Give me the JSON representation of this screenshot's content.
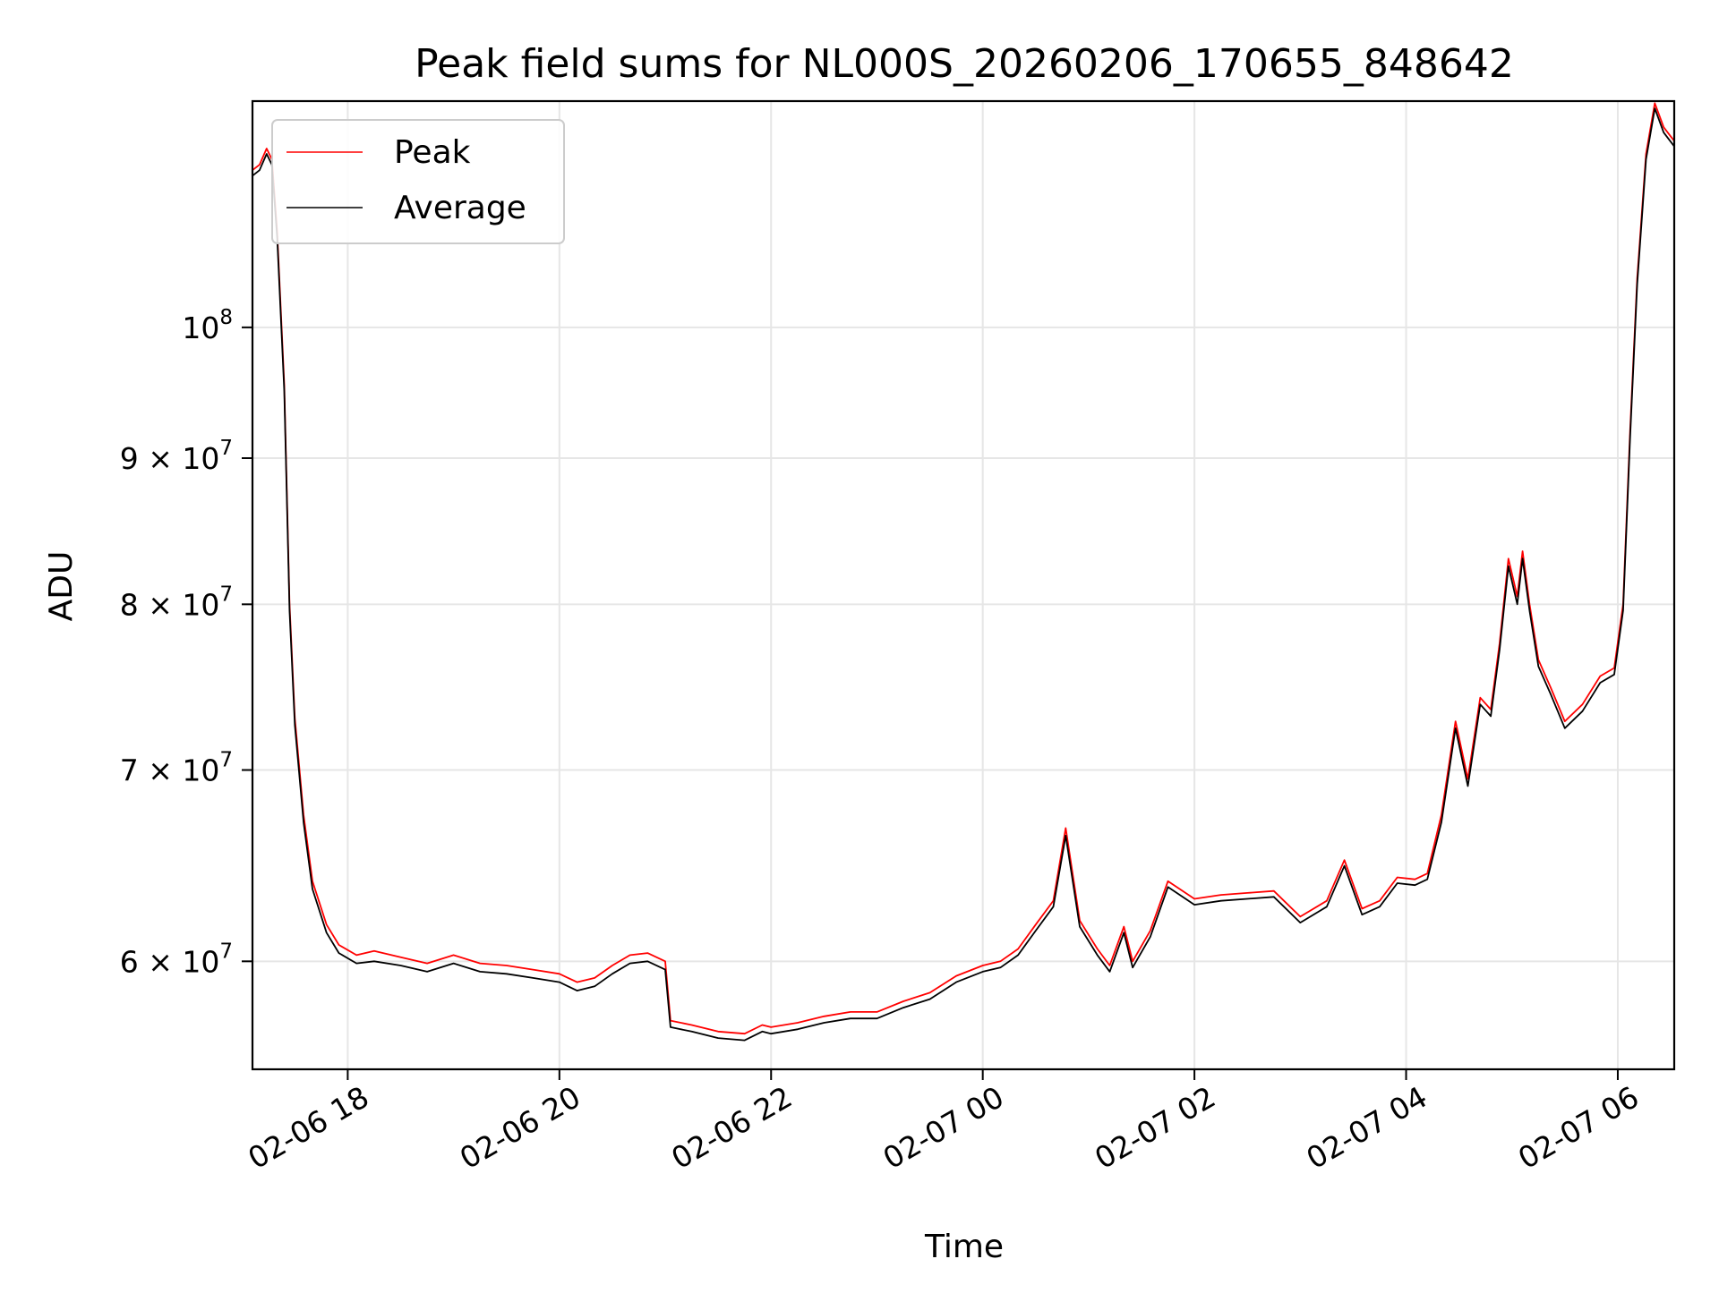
{
  "chart_data": {
    "type": "line",
    "title": "Peak field sums for NL000S_20260206_170655_848642",
    "xlabel": "Time",
    "ylabel": "ADU",
    "y_scale": "log",
    "grid": true,
    "legend_position": "top-left",
    "x_range": [
      "2026-02-06 17:06",
      "2026-02-07 06:32"
    ],
    "ylim": [
      55000000,
      120000000
    ],
    "x_ticks": [
      {
        "t": "2026-02-06 18:00",
        "label": "02-06 18"
      },
      {
        "t": "2026-02-06 20:00",
        "label": "02-06 20"
      },
      {
        "t": "2026-02-06 22:00",
        "label": "02-06 22"
      },
      {
        "t": "2026-02-07 00:00",
        "label": "02-07 00"
      },
      {
        "t": "2026-02-07 02:00",
        "label": "02-07 02"
      },
      {
        "t": "2026-02-07 04:00",
        "label": "02-07 04"
      },
      {
        "t": "2026-02-07 06:00",
        "label": "02-07 06"
      }
    ],
    "y_ticks": [
      {
        "value": 60000000,
        "base": "6",
        "exp": "7",
        "label": "6 × 10^7"
      },
      {
        "value": 70000000,
        "base": "7",
        "exp": "7",
        "label": "7 × 10^7"
      },
      {
        "value": 80000000,
        "base": "8",
        "exp": "7",
        "label": "8 × 10^7"
      },
      {
        "value": 90000000,
        "base": "9",
        "exp": "7",
        "label": "9 × 10^7"
      },
      {
        "value": 100000000,
        "base": "10",
        "exp": "8",
        "label": "10^8"
      }
    ],
    "series": [
      {
        "name": "Peak",
        "color": "#ff0000",
        "points": [
          [
            "2026-02-06 17:06",
            113500000
          ],
          [
            "2026-02-06 17:10",
            114000000
          ],
          [
            "2026-02-06 17:14",
            115500000
          ],
          [
            "2026-02-06 17:17",
            114500000
          ],
          [
            "2026-02-06 17:20",
            108000000
          ],
          [
            "2026-02-06 17:24",
            95500000
          ],
          [
            "2026-02-06 17:27",
            80000000
          ],
          [
            "2026-02-06 17:30",
            73000000
          ],
          [
            "2026-02-06 17:35",
            67500000
          ],
          [
            "2026-02-06 17:40",
            64000000
          ],
          [
            "2026-02-06 17:48",
            61800000
          ],
          [
            "2026-02-06 17:55",
            60800000
          ],
          [
            "2026-02-06 18:05",
            60300000
          ],
          [
            "2026-02-06 18:15",
            60500000
          ],
          [
            "2026-02-06 18:30",
            60200000
          ],
          [
            "2026-02-06 18:45",
            59900000
          ],
          [
            "2026-02-06 19:00",
            60300000
          ],
          [
            "2026-02-06 19:15",
            59900000
          ],
          [
            "2026-02-06 19:30",
            59800000
          ],
          [
            "2026-02-06 19:45",
            59600000
          ],
          [
            "2026-02-06 20:00",
            59400000
          ],
          [
            "2026-02-06 20:10",
            59000000
          ],
          [
            "2026-02-06 20:20",
            59200000
          ],
          [
            "2026-02-06 20:30",
            59800000
          ],
          [
            "2026-02-06 20:40",
            60300000
          ],
          [
            "2026-02-06 20:50",
            60400000
          ],
          [
            "2026-02-06 21:00",
            60000000
          ],
          [
            "2026-02-06 21:03",
            57200000
          ],
          [
            "2026-02-06 21:15",
            57000000
          ],
          [
            "2026-02-06 21:30",
            56700000
          ],
          [
            "2026-02-06 21:45",
            56600000
          ],
          [
            "2026-02-06 21:55",
            57000000
          ],
          [
            "2026-02-06 22:00",
            56900000
          ],
          [
            "2026-02-06 22:15",
            57100000
          ],
          [
            "2026-02-06 22:30",
            57400000
          ],
          [
            "2026-02-06 22:45",
            57600000
          ],
          [
            "2026-02-06 23:00",
            57600000
          ],
          [
            "2026-02-06 23:15",
            58100000
          ],
          [
            "2026-02-06 23:30",
            58500000
          ],
          [
            "2026-02-06 23:45",
            59300000
          ],
          [
            "2026-02-07 00:00",
            59800000
          ],
          [
            "2026-02-07 00:10",
            60000000
          ],
          [
            "2026-02-07 00:20",
            60600000
          ],
          [
            "2026-02-07 00:30",
            61800000
          ],
          [
            "2026-02-07 00:40",
            63000000
          ],
          [
            "2026-02-07 00:47",
            66800000
          ],
          [
            "2026-02-07 00:55",
            62000000
          ],
          [
            "2026-02-07 01:05",
            60600000
          ],
          [
            "2026-02-07 01:12",
            59800000
          ],
          [
            "2026-02-07 01:20",
            61700000
          ],
          [
            "2026-02-07 01:25",
            60000000
          ],
          [
            "2026-02-07 01:35",
            61500000
          ],
          [
            "2026-02-07 01:45",
            64000000
          ],
          [
            "2026-02-07 02:00",
            63100000
          ],
          [
            "2026-02-07 02:15",
            63300000
          ],
          [
            "2026-02-07 02:30",
            63400000
          ],
          [
            "2026-02-07 02:45",
            63500000
          ],
          [
            "2026-02-07 03:00",
            62200000
          ],
          [
            "2026-02-07 03:15",
            63000000
          ],
          [
            "2026-02-07 03:25",
            65100000
          ],
          [
            "2026-02-07 03:35",
            62600000
          ],
          [
            "2026-02-07 03:45",
            63000000
          ],
          [
            "2026-02-07 03:55",
            64200000
          ],
          [
            "2026-02-07 04:05",
            64100000
          ],
          [
            "2026-02-07 04:12",
            64400000
          ],
          [
            "2026-02-07 04:20",
            67500000
          ],
          [
            "2026-02-07 04:28",
            72800000
          ],
          [
            "2026-02-07 04:35",
            69500000
          ],
          [
            "2026-02-07 04:42",
            74200000
          ],
          [
            "2026-02-07 04:48",
            73500000
          ],
          [
            "2026-02-07 04:53",
            77500000
          ],
          [
            "2026-02-07 04:58",
            83000000
          ],
          [
            "2026-02-07 05:03",
            80500000
          ],
          [
            "2026-02-07 05:06",
            83500000
          ],
          [
            "2026-02-07 05:10",
            80000000
          ],
          [
            "2026-02-07 05:15",
            76500000
          ],
          [
            "2026-02-07 05:22",
            74800000
          ],
          [
            "2026-02-07 05:30",
            72800000
          ],
          [
            "2026-02-07 05:40",
            73800000
          ],
          [
            "2026-02-07 05:50",
            75500000
          ],
          [
            "2026-02-07 05:58",
            76000000
          ],
          [
            "2026-02-07 06:03",
            80000000
          ],
          [
            "2026-02-07 06:07",
            92000000
          ],
          [
            "2026-02-07 06:11",
            104000000
          ],
          [
            "2026-02-07 06:16",
            115000000
          ],
          [
            "2026-02-07 06:21",
            119800000
          ],
          [
            "2026-02-07 06:26",
            117500000
          ],
          [
            "2026-02-07 06:32",
            116200000
          ]
        ]
      },
      {
        "name": "Average",
        "color": "#000000",
        "points": [
          [
            "2026-02-06 17:06",
            113000000
          ],
          [
            "2026-02-06 17:10",
            113500000
          ],
          [
            "2026-02-06 17:14",
            115000000
          ],
          [
            "2026-02-06 17:17",
            114000000
          ],
          [
            "2026-02-06 17:20",
            107500000
          ],
          [
            "2026-02-06 17:24",
            95000000
          ],
          [
            "2026-02-06 17:27",
            79600000
          ],
          [
            "2026-02-06 17:30",
            72600000
          ],
          [
            "2026-02-06 17:35",
            67100000
          ],
          [
            "2026-02-06 17:40",
            63600000
          ],
          [
            "2026-02-06 17:48",
            61400000
          ],
          [
            "2026-02-06 17:55",
            60400000
          ],
          [
            "2026-02-06 18:05",
            59900000
          ],
          [
            "2026-02-06 18:15",
            60000000
          ],
          [
            "2026-02-06 18:30",
            59800000
          ],
          [
            "2026-02-06 18:45",
            59500000
          ],
          [
            "2026-02-06 19:00",
            59900000
          ],
          [
            "2026-02-06 19:15",
            59500000
          ],
          [
            "2026-02-06 19:30",
            59400000
          ],
          [
            "2026-02-06 19:45",
            59200000
          ],
          [
            "2026-02-06 20:00",
            59000000
          ],
          [
            "2026-02-06 20:10",
            58600000
          ],
          [
            "2026-02-06 20:20",
            58800000
          ],
          [
            "2026-02-06 20:30",
            59400000
          ],
          [
            "2026-02-06 20:40",
            59900000
          ],
          [
            "2026-02-06 20:50",
            60000000
          ],
          [
            "2026-02-06 21:00",
            59600000
          ],
          [
            "2026-02-06 21:03",
            56900000
          ],
          [
            "2026-02-06 21:15",
            56700000
          ],
          [
            "2026-02-06 21:30",
            56400000
          ],
          [
            "2026-02-06 21:45",
            56300000
          ],
          [
            "2026-02-06 21:55",
            56700000
          ],
          [
            "2026-02-06 22:00",
            56600000
          ],
          [
            "2026-02-06 22:15",
            56800000
          ],
          [
            "2026-02-06 22:30",
            57100000
          ],
          [
            "2026-02-06 22:45",
            57300000
          ],
          [
            "2026-02-06 23:00",
            57300000
          ],
          [
            "2026-02-06 23:15",
            57800000
          ],
          [
            "2026-02-06 23:30",
            58200000
          ],
          [
            "2026-02-06 23:45",
            59000000
          ],
          [
            "2026-02-07 00:00",
            59500000
          ],
          [
            "2026-02-07 00:10",
            59700000
          ],
          [
            "2026-02-07 00:20",
            60300000
          ],
          [
            "2026-02-07 00:30",
            61500000
          ],
          [
            "2026-02-07 00:40",
            62700000
          ],
          [
            "2026-02-07 00:47",
            66400000
          ],
          [
            "2026-02-07 00:55",
            61700000
          ],
          [
            "2026-02-07 01:05",
            60300000
          ],
          [
            "2026-02-07 01:12",
            59500000
          ],
          [
            "2026-02-07 01:20",
            61400000
          ],
          [
            "2026-02-07 01:25",
            59700000
          ],
          [
            "2026-02-07 01:35",
            61200000
          ],
          [
            "2026-02-07 01:45",
            63700000
          ],
          [
            "2026-02-07 02:00",
            62800000
          ],
          [
            "2026-02-07 02:15",
            63000000
          ],
          [
            "2026-02-07 02:30",
            63100000
          ],
          [
            "2026-02-07 02:45",
            63200000
          ],
          [
            "2026-02-07 03:00",
            61900000
          ],
          [
            "2026-02-07 03:15",
            62700000
          ],
          [
            "2026-02-07 03:25",
            64800000
          ],
          [
            "2026-02-07 03:35",
            62300000
          ],
          [
            "2026-02-07 03:45",
            62700000
          ],
          [
            "2026-02-07 03:55",
            63900000
          ],
          [
            "2026-02-07 04:05",
            63800000
          ],
          [
            "2026-02-07 04:12",
            64100000
          ],
          [
            "2026-02-07 04:20",
            67100000
          ],
          [
            "2026-02-07 04:28",
            72400000
          ],
          [
            "2026-02-07 04:35",
            69100000
          ],
          [
            "2026-02-07 04:42",
            73800000
          ],
          [
            "2026-02-07 04:48",
            73100000
          ],
          [
            "2026-02-07 04:53",
            77100000
          ],
          [
            "2026-02-07 04:58",
            82500000
          ],
          [
            "2026-02-07 05:03",
            80000000
          ],
          [
            "2026-02-07 05:06",
            83000000
          ],
          [
            "2026-02-07 05:10",
            79600000
          ],
          [
            "2026-02-07 05:15",
            76100000
          ],
          [
            "2026-02-07 05:22",
            74400000
          ],
          [
            "2026-02-07 05:30",
            72400000
          ],
          [
            "2026-02-07 05:40",
            73400000
          ],
          [
            "2026-02-07 05:50",
            75100000
          ],
          [
            "2026-02-07 05:58",
            75600000
          ],
          [
            "2026-02-07 06:03",
            79600000
          ],
          [
            "2026-02-07 06:07",
            91500000
          ],
          [
            "2026-02-07 06:11",
            103500000
          ],
          [
            "2026-02-07 06:16",
            114500000
          ],
          [
            "2026-02-07 06:21",
            119300000
          ],
          [
            "2026-02-07 06:26",
            117000000
          ],
          [
            "2026-02-07 06:32",
            115700000
          ]
        ]
      }
    ]
  }
}
